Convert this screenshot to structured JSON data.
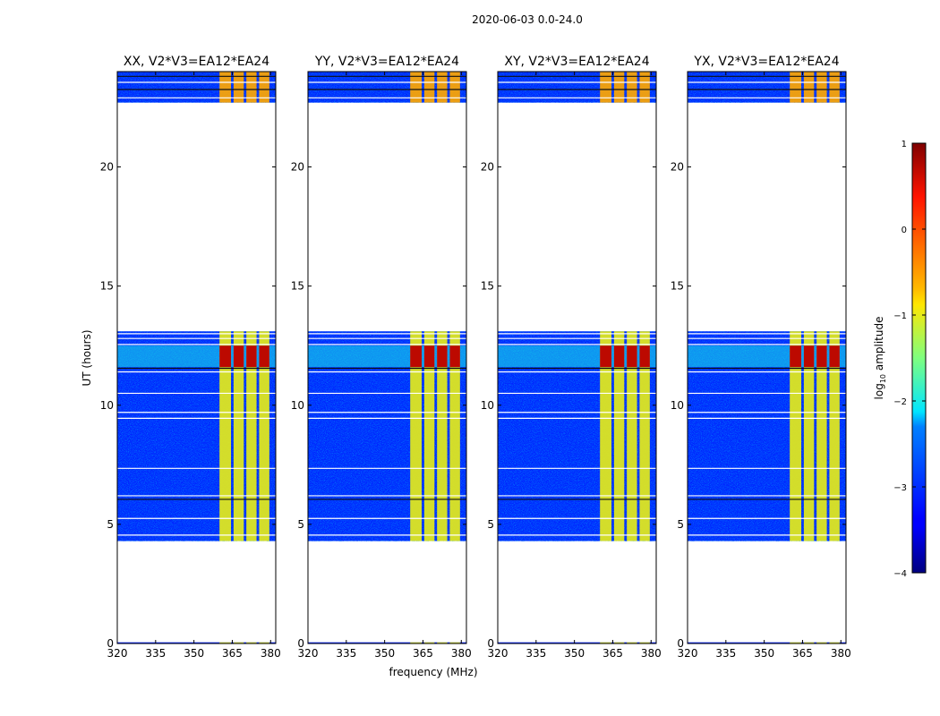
{
  "chart_data": {
    "type": "heatmap",
    "title": "2020-06-03 0.0-24.0",
    "xlabel": "frequency (MHz)",
    "ylabel": "UT (hours)",
    "xlim": [
      320,
      382
    ],
    "ylim": [
      0,
      24
    ],
    "x_ticks": [
      "320",
      "335",
      "350",
      "365",
      "380"
    ],
    "x_tick_values": [
      320,
      335,
      350,
      365,
      380
    ],
    "y_ticks": [
      "0",
      "5",
      "10",
      "15",
      "20"
    ],
    "y_tick_values": [
      0,
      5,
      10,
      15,
      20
    ],
    "panels": [
      {
        "title": "XX, V2*V3=EA12*EA24",
        "polarization": "XX"
      },
      {
        "title": "YY, V2*V3=EA12*EA24",
        "polarization": "YY"
      },
      {
        "title": "XY, V2*V3=EA12*EA24",
        "polarization": "XY"
      },
      {
        "title": "YX, V2*V3=EA12*EA24",
        "polarization": "YX"
      }
    ],
    "data_time_ranges_hours": [
      [
        0.0,
        0.05
      ],
      [
        4.3,
        13.1
      ],
      [
        22.7,
        24.0
      ]
    ],
    "rfi_band_mhz": [
      360,
      380
    ],
    "rfi_channels_mhz": [
      [
        360,
        364.5
      ],
      [
        365.5,
        369.5
      ],
      [
        370.5,
        374.5
      ],
      [
        375.5,
        379.5
      ]
    ],
    "bright_rfi_hours": [
      11.6,
      12.5
    ],
    "background_log10_amplitude": -3.2,
    "rfi_log10_amplitude": -1.0,
    "peak_log10_amplitude": 0.7,
    "colorbar": {
      "label": "log10 amplitude",
      "label_text": "amplitude",
      "range": [
        -4,
        1
      ],
      "ticks": [
        "1",
        "0",
        "−1",
        "−2",
        "−3",
        "−4"
      ],
      "tick_values": [
        1,
        0,
        -1,
        -2,
        -3,
        -4
      ],
      "colormap": "jet"
    }
  }
}
